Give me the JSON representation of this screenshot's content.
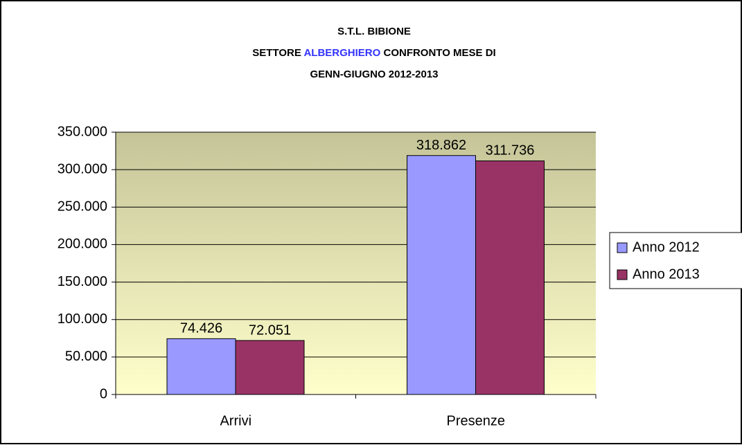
{
  "chart_data": {
    "type": "bar",
    "title": {
      "line1": "S.T.L. BIBIONE",
      "line2_start": "SETTORE",
      "line2_highlight": "ALBERGHIERO",
      "line2_end": "CONFRONTO MESE DI",
      "line3": "GENN-GIUGNO 2012-2013"
    },
    "categories": [
      "Arrivi",
      "Presenze"
    ],
    "series": [
      {
        "name": "Anno 2012",
        "color": "#9999ff",
        "values": [
          74426,
          318862
        ],
        "value_labels": [
          "74.426",
          "318.862"
        ]
      },
      {
        "name": "Anno 2013",
        "color": "#993366",
        "values": [
          72051,
          311736
        ],
        "value_labels": [
          "72.051",
          "311.736"
        ]
      }
    ],
    "ylim": [
      0,
      350000
    ],
    "yticks": [
      0,
      {
        "value": 50000,
        "label": "50.000"
      },
      {
        "value": 100000,
        "label": "100.000"
      },
      {
        "value": 150000,
        "label": "150.000"
      },
      {
        "value": 200000,
        "label": "200.000"
      },
      {
        "value": 250000,
        "label": "250.000"
      },
      {
        "value": 300000,
        "label": "300.000"
      },
      {
        "value": 350000,
        "label": "350.000"
      }
    ],
    "grid": true,
    "legend": "right"
  }
}
